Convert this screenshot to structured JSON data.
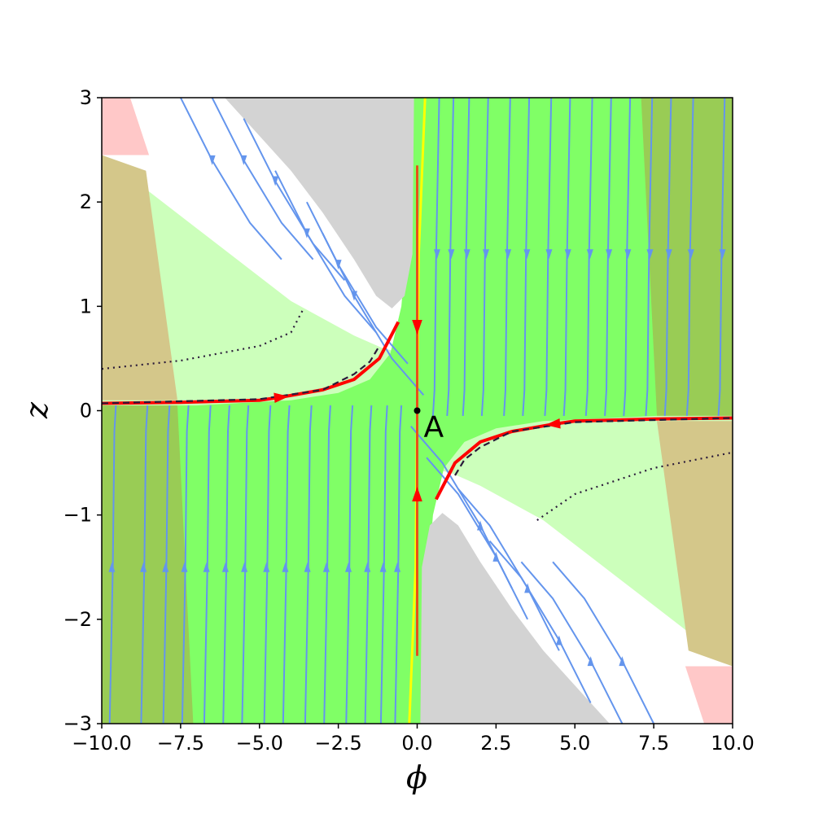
{
  "chart_data": {
    "type": "streamplot",
    "title": "",
    "xlabel": "ϕ",
    "ylabel": "z",
    "xlim": [
      -10,
      10
    ],
    "ylim": [
      -3,
      3
    ],
    "xticks": [
      -10,
      -7.5,
      -5,
      -2.5,
      0,
      2.5,
      5,
      7.5,
      10
    ],
    "xtick_labels": [
      "−10.0",
      "−7.5",
      "−5.0",
      "−2.5",
      "0.0",
      "2.5",
      "5.0",
      "7.5",
      "10.0"
    ],
    "yticks": [
      3,
      2,
      1,
      0,
      -1,
      -2,
      -3
    ],
    "ytick_labels": [
      "3",
      "2",
      "1",
      "0",
      "−1",
      "−2",
      "−3"
    ],
    "grid": false,
    "legend": "none",
    "colors": {
      "stream": "#6495ED",
      "trajectory": "#FF0000",
      "gray_region": "#D3D3D3",
      "light_green_region": "#CCFFBB",
      "green_region": "#80FF66",
      "olive_region": "#99CC55",
      "tan_region": "#D4C78A",
      "pink_region": "#FFC8C8",
      "yellow_line": "#FFFF00"
    },
    "annotations": [
      {
        "text": "A",
        "x": 0.0,
        "y": 0.0
      }
    ],
    "fixed_points": [
      {
        "label": "A",
        "x": 0.0,
        "y": 0.0
      }
    ],
    "separatrix_left": [
      [
        -10,
        0.07
      ],
      [
        -7.5,
        0.08
      ],
      [
        -5,
        0.1
      ],
      [
        -4.3,
        0.13
      ],
      [
        -3,
        0.2
      ],
      [
        -2,
        0.3
      ],
      [
        -1.2,
        0.5
      ],
      [
        -0.6,
        0.85
      ]
    ],
    "separatrix_right": [
      [
        0.6,
        -0.85
      ],
      [
        1.2,
        -0.5
      ],
      [
        2,
        -0.3
      ],
      [
        3,
        -0.2
      ],
      [
        4.3,
        -0.13
      ],
      [
        5,
        -0.1
      ],
      [
        7.5,
        -0.08
      ],
      [
        10,
        -0.07
      ]
    ],
    "vertical_trajectory": [
      [
        0,
        2.35
      ],
      [
        0,
        0.8
      ],
      [
        0,
        -0.8
      ],
      [
        0,
        -2.35
      ]
    ],
    "dotted_curve_left": [
      [
        -10,
        0.4
      ],
      [
        -7.5,
        0.48
      ],
      [
        -5,
        0.62
      ],
      [
        -4,
        0.75
      ],
      [
        -3.6,
        0.98
      ]
    ],
    "dotted_curve_right": [
      [
        3.8,
        -1.05
      ],
      [
        5,
        -0.8
      ],
      [
        7.5,
        -0.55
      ],
      [
        10,
        -0.4
      ]
    ],
    "dashed_curve_left": [
      [
        -10,
        0.07
      ],
      [
        -5,
        0.11
      ],
      [
        -3,
        0.2
      ],
      [
        -2,
        0.35
      ],
      [
        -1.5,
        0.47
      ],
      [
        -1.2,
        0.62
      ]
    ],
    "dashed_curve_right": [
      [
        1.2,
        -0.62
      ],
      [
        1.5,
        -0.47
      ],
      [
        2,
        -0.35
      ],
      [
        3,
        -0.2
      ],
      [
        5,
        -0.11
      ],
      [
        10,
        -0.07
      ]
    ]
  }
}
